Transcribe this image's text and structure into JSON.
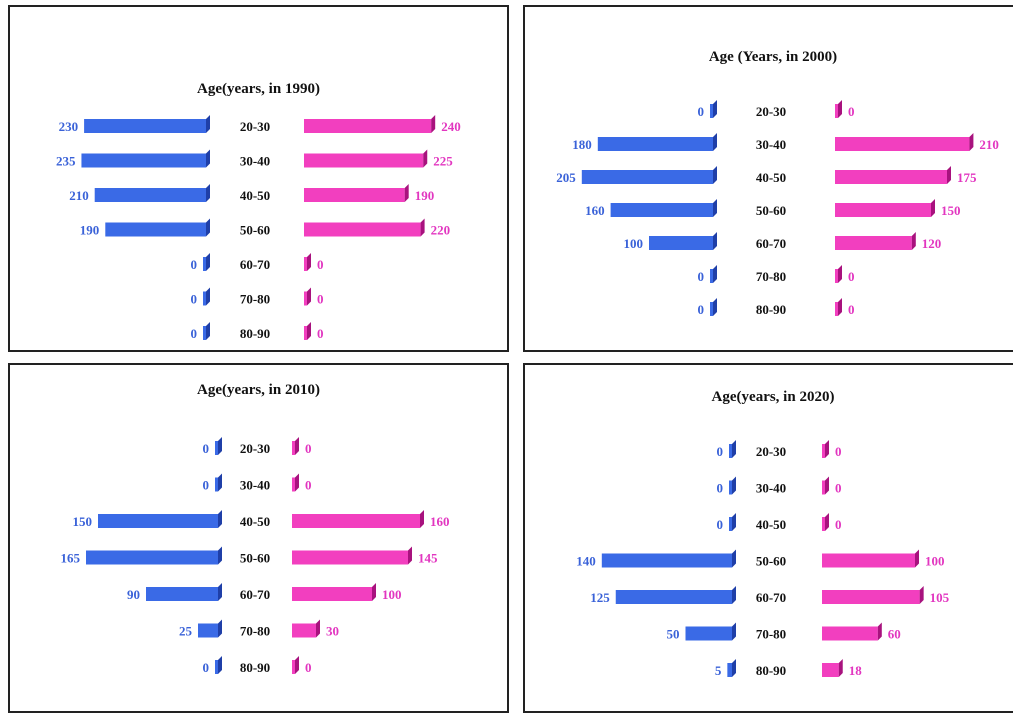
{
  "colors": {
    "male": "#3a6ae6",
    "female": "#f23fbf",
    "male_dark": "#1f3fa8",
    "female_dark": "#a8127e",
    "male_text": "#3a62d8",
    "female_text": "#e236c0",
    "age_text": "#111111"
  },
  "chart_data": [
    {
      "type": "bar",
      "title": "Age(years, in 1990)",
      "categories": [
        "20-30",
        "30-40",
        "40-50",
        "50-60",
        "60-70",
        "70-80",
        "80-90"
      ],
      "series": [
        {
          "values": [
            230,
            235,
            210,
            190,
            0,
            0,
            0
          ]
        },
        {
          "values": [
            240,
            225,
            190,
            220,
            0,
            0,
            0
          ]
        }
      ]
    },
    {
      "type": "bar",
      "title": "Age (Years, in 2000)",
      "categories": [
        "20-30",
        "30-40",
        "40-50",
        "50-60",
        "60-70",
        "70-80",
        "80-90"
      ],
      "series": [
        {
          "values": [
            0,
            180,
            205,
            160,
            100,
            0,
            0
          ]
        },
        {
          "values": [
            0,
            210,
            175,
            150,
            120,
            0,
            0
          ]
        }
      ]
    },
    {
      "type": "bar",
      "title": "Age(years, in 2010)",
      "categories": [
        "20-30",
        "30-40",
        "40-50",
        "50-60",
        "60-70",
        "70-80",
        "80-90"
      ],
      "series": [
        {
          "values": [
            0,
            0,
            150,
            165,
            90,
            25,
            0
          ]
        },
        {
          "values": [
            0,
            0,
            160,
            145,
            100,
            30,
            0
          ]
        }
      ]
    },
    {
      "type": "bar",
      "title": "Age(years, in 2020)",
      "categories": [
        "20-30",
        "30-40",
        "40-50",
        "50-60",
        "60-70",
        "70-80",
        "80-90"
      ],
      "series": [
        {
          "values": [
            0,
            0,
            0,
            140,
            125,
            50,
            5
          ]
        },
        {
          "values": [
            0,
            0,
            0,
            100,
            105,
            60,
            18
          ]
        }
      ]
    }
  ]
}
